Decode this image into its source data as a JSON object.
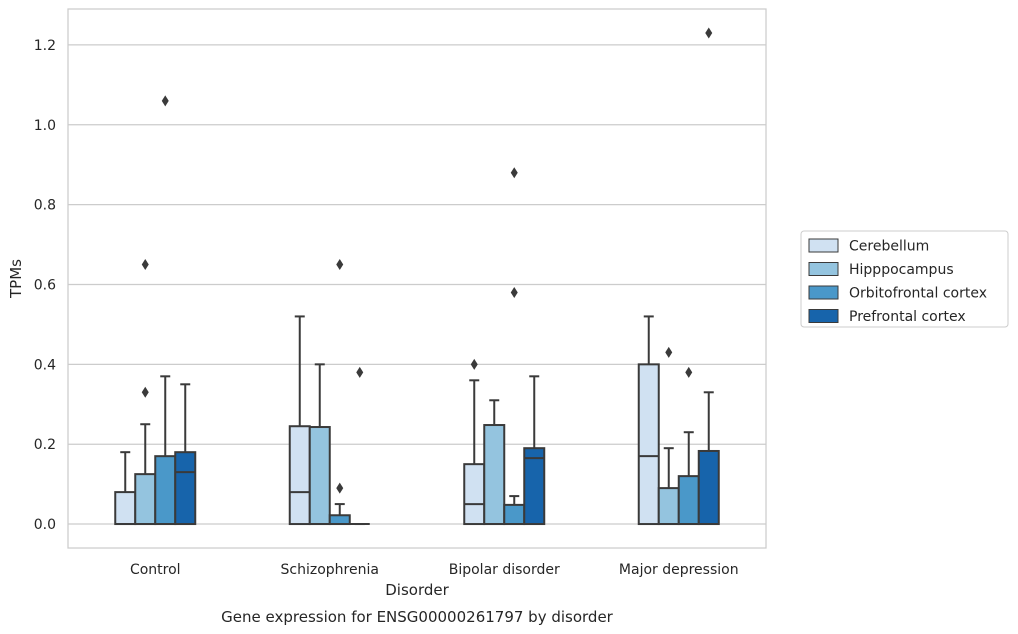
{
  "chart_data": {
    "type": "boxplot",
    "title": "",
    "caption": "Gene expression for ENSG00000261797 by disorder",
    "xlabel": "Disorder",
    "ylabel": "TPMs",
    "ylim": [
      -0.06,
      1.29
    ],
    "yticks": [
      0.0,
      0.2,
      0.4,
      0.6,
      0.8,
      1.0,
      1.2
    ],
    "ytick_labels": [
      "0.0",
      "0.2",
      "0.4",
      "0.6",
      "0.8",
      "1.0",
      "1.2"
    ],
    "grid": true,
    "legend_position": "right",
    "categories": [
      "Control",
      "Schizophrenia",
      "Bipolar disorder",
      "Major depression"
    ],
    "series": [
      {
        "name": "Cerebellum",
        "color": "#d0e1f2",
        "boxes": [
          {
            "whisker_low": 0.0,
            "q1": 0.0,
            "median": 0.0,
            "q3": 0.08,
            "whisker_high": 0.18,
            "outliers": []
          },
          {
            "whisker_low": 0.0,
            "q1": 0.0,
            "median": 0.08,
            "q3": 0.245,
            "whisker_high": 0.52,
            "outliers": []
          },
          {
            "whisker_low": 0.0,
            "q1": 0.0,
            "median": 0.05,
            "q3": 0.15,
            "whisker_high": 0.36,
            "outliers": [
              0.4
            ]
          },
          {
            "whisker_low": 0.0,
            "q1": 0.0,
            "median": 0.17,
            "q3": 0.4,
            "whisker_high": 0.52,
            "outliers": []
          }
        ]
      },
      {
        "name": "Hipppocampus",
        "color": "#94c4df",
        "boxes": [
          {
            "whisker_low": 0.0,
            "q1": 0.0,
            "median": 0.0,
            "q3": 0.125,
            "whisker_high": 0.25,
            "outliers": [
              0.33,
              0.65
            ]
          },
          {
            "whisker_low": 0.0,
            "q1": 0.0,
            "median": 0.0,
            "q3": 0.243,
            "whisker_high": 0.4,
            "outliers": []
          },
          {
            "whisker_low": 0.0,
            "q1": 0.0,
            "median": 0.0,
            "q3": 0.248,
            "whisker_high": 0.31,
            "outliers": []
          },
          {
            "whisker_low": 0.0,
            "q1": 0.0,
            "median": 0.0,
            "q3": 0.09,
            "whisker_high": 0.19,
            "outliers": [
              0.43
            ]
          }
        ]
      },
      {
        "name": "Orbitofrontal cortex",
        "color": "#4a98c9",
        "boxes": [
          {
            "whisker_low": 0.0,
            "q1": 0.0,
            "median": 0.0,
            "q3": 0.17,
            "whisker_high": 0.37,
            "outliers": [
              1.06
            ]
          },
          {
            "whisker_low": 0.0,
            "q1": 0.0,
            "median": 0.0,
            "q3": 0.022,
            "whisker_high": 0.05,
            "outliers": [
              0.09,
              0.65
            ]
          },
          {
            "whisker_low": 0.0,
            "q1": 0.0,
            "median": 0.0,
            "q3": 0.048,
            "whisker_high": 0.07,
            "outliers": [
              0.58,
              0.88
            ]
          },
          {
            "whisker_low": 0.0,
            "q1": 0.0,
            "median": 0.0,
            "q3": 0.12,
            "whisker_high": 0.23,
            "outliers": [
              0.38
            ]
          }
        ]
      },
      {
        "name": "Prefrontal cortex",
        "color": "#1764ab",
        "boxes": [
          {
            "whisker_low": 0.0,
            "q1": 0.0,
            "median": 0.13,
            "q3": 0.18,
            "whisker_high": 0.35,
            "outliers": []
          },
          {
            "whisker_low": 0.0,
            "q1": 0.0,
            "median": 0.0,
            "q3": 0.0,
            "whisker_high": 0.0,
            "outliers": [
              0.38
            ]
          },
          {
            "whisker_low": 0.0,
            "q1": 0.0,
            "median": 0.165,
            "q3": 0.19,
            "whisker_high": 0.37,
            "outliers": []
          },
          {
            "whisker_low": 0.0,
            "q1": 0.0,
            "median": 0.0,
            "q3": 0.183,
            "whisker_high": 0.33,
            "outliers": [
              1.23
            ]
          }
        ]
      }
    ]
  }
}
